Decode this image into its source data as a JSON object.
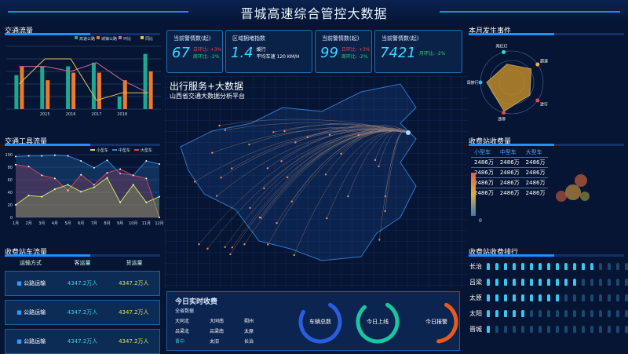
{
  "header": {
    "title": "晋城高速综合管控大数据"
  },
  "panels": {
    "traffic_flow": "交通流量",
    "vehicle_flow": "交通工具流量",
    "station_flow": "收费站车流量",
    "events": "本月发生事件",
    "station_fee": "收费站收费量",
    "station_rank": "收费站收费排行"
  },
  "kpis": [
    {
      "label": "当前警情数(起)",
      "value": "67",
      "s1": "日环比: +3%",
      "s2": "周环比: -2%"
    },
    {
      "label": "区域拥堵指数",
      "value": "1.4",
      "s1": "缓行",
      "s2": "平均车速 120  KM/H"
    },
    {
      "label": "当前警情数(起)",
      "value": "99",
      "s1": "日环比: +3%",
      "s2": "周环比: -2%"
    },
    {
      "label": "当前警情数(起)",
      "value": "7421",
      "s1": "",
      "s2": "月环比: -2%"
    }
  ],
  "map": {
    "title": "出行服务+大数据",
    "subtitle": "山西省交通大数据分析平台"
  },
  "chart_data": [
    {
      "type": "bar",
      "categories": [
        "",
        "2015",
        "2016",
        "2017",
        "2018",
        ""
      ],
      "series": [
        {
          "name": "高速公路",
          "kind": "bar",
          "color": "#1fa88f",
          "values": [
            2.7,
            3.4,
            3.4,
            3.7,
            1.0,
            4.4
          ]
        },
        {
          "name": "城镇公路",
          "kind": "bar",
          "color": "#ef7a2c",
          "values": [
            3.4,
            2.3,
            2.9,
            2.9,
            2.3,
            3.0
          ]
        },
        {
          "name": "环比",
          "kind": "line",
          "color": "#c76a9a",
          "values": [
            3.4,
            3.4,
            3.0,
            3.7,
            2.3,
            1.3
          ]
        },
        {
          "name": "同比",
          "kind": "line",
          "color": "#e8c25a",
          "values": [
            2.0,
            4.0,
            4.0,
            0.7,
            1.3,
            1.3
          ]
        }
      ],
      "ylim": [
        0,
        5
      ],
      "grid": true,
      "legend": "top-right"
    },
    {
      "type": "area",
      "categories": [
        "1月",
        "2月",
        "3月",
        "4月",
        "5月",
        "6月",
        "7月",
        "8月",
        "9月",
        "10月",
        "11月",
        "12月"
      ],
      "yticks": [
        0,
        20,
        40,
        60,
        80,
        100
      ],
      "ylim": [
        0,
        100
      ],
      "legend": "top-right",
      "series": [
        {
          "name": "小型车",
          "color": "#c6e35a",
          "values": [
            20,
            35,
            33,
            45,
            52,
            41,
            48,
            63,
            24,
            52,
            24,
            33
          ]
        },
        {
          "name": "中型车",
          "color": "#2f86d8",
          "values": [
            97,
            98,
            98,
            99,
            98,
            90,
            79,
            91,
            70,
            67,
            90,
            85
          ]
        },
        {
          "name": "大型车",
          "color": "#d0455a",
          "values": [
            84,
            81,
            67,
            62,
            43,
            68,
            52,
            71,
            77,
            67,
            62,
            0
          ]
        }
      ]
    },
    {
      "type": "radar",
      "indicators": [
        "闯红灯",
        "超速",
        "逆行",
        "违停",
        "闯禁行"
      ],
      "values": [
        0.6,
        0.75,
        0.7,
        0.95,
        0.8
      ],
      "color": "#c8902a"
    }
  ],
  "station_flow": {
    "headers": [
      "运输方式",
      "客运量",
      "货运量"
    ],
    "rows": [
      {
        "mode": "公路运输",
        "passenger": "4347.2万人",
        "cargo": "4347.2万人"
      },
      {
        "mode": "公路运输",
        "passenger": "4347.2万人",
        "cargo": "4347.2万人"
      },
      {
        "mode": "公路运输",
        "passenger": "4347.2万人",
        "cargo": "4347.2万人"
      }
    ]
  },
  "fee_table": {
    "headers": [
      "小型车",
      "中型车",
      "大型车"
    ],
    "rows": [
      [
        "2486万",
        "2486万",
        "2486万"
      ],
      [
        "2486万",
        "2486万",
        "2486万"
      ],
      [
        "2486万",
        "2486万",
        "2486万"
      ],
      [
        "2486万",
        "2486万",
        "2486万"
      ]
    ],
    "scale_min": "0"
  },
  "realtime": {
    "title": "今日实时收费",
    "sub": "全省数据",
    "stations": [
      "大同北",
      "大同南",
      "朔州",
      "吕梁北",
      "吕梁南",
      "太原",
      "晋中",
      "太旧",
      "长治"
    ],
    "rings": [
      {
        "label": "车辆总数",
        "value": 0.75,
        "c1": "#2a5de0",
        "c2": "#5ac8fa"
      },
      {
        "label": "今日上线",
        "value": 0.8,
        "c1": "#19c6a0",
        "c2": "#2ae0c0"
      },
      {
        "label": "今日报警",
        "value": 0.4,
        "c1": "#e85a1a",
        "c2": "#e8a81a"
      }
    ]
  },
  "ranking": [
    {
      "name": "长治",
      "value": 13
    },
    {
      "name": "吕梁",
      "value": 11
    },
    {
      "name": "太原",
      "value": 9
    },
    {
      "name": "太阳",
      "value": 5
    },
    {
      "name": "晋城",
      "value": 1
    }
  ],
  "ranking_total": 17
}
